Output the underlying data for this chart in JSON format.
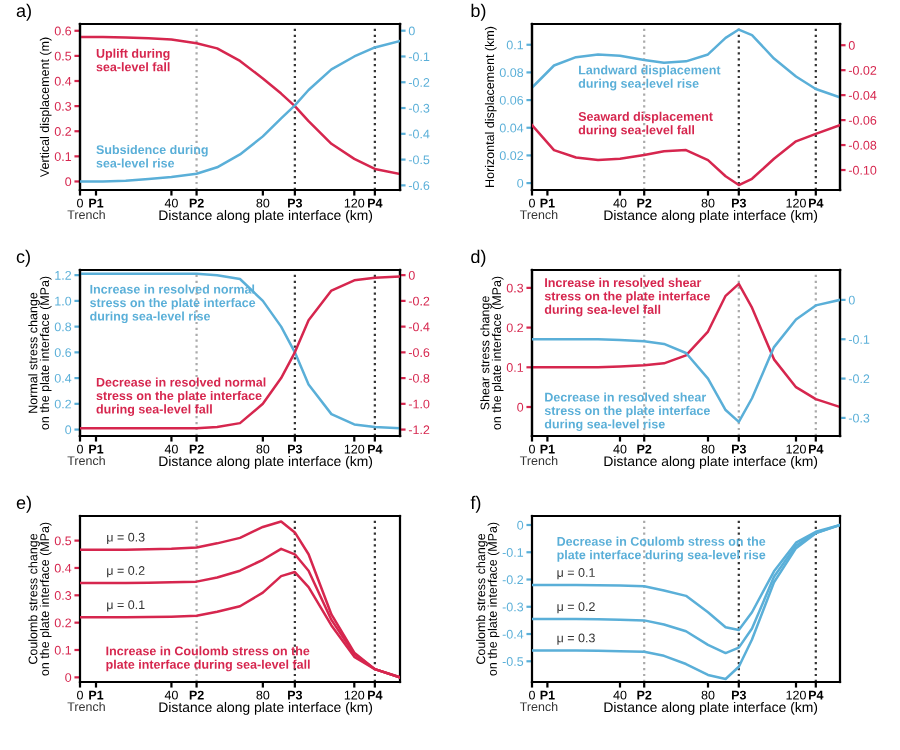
{
  "chart_data": [
    {
      "type": "line",
      "title": "a)",
      "xlabel": "Distance along plate interface (km)",
      "ylabel": "Vertical displacement (m)",
      "annotations": [
        "Trench"
      ],
      "x": [
        0,
        10,
        20,
        30,
        40,
        51,
        60,
        70,
        80,
        88,
        94,
        100,
        110,
        120,
        129,
        140
      ],
      "xlim": [
        0,
        140
      ],
      "xticks": [
        {
          "value": 0,
          "label": "0"
        },
        {
          "value": 7,
          "label": "P1"
        },
        40,
        {
          "value": 51,
          "label": "P2"
        },
        80,
        {
          "value": 94,
          "label": "P3"
        },
        120,
        {
          "value": 129,
          "label": "P4"
        }
      ],
      "ylim": [
        -0.034,
        0.627
      ],
      "yticks": [
        0,
        0.1,
        0.2,
        0.3,
        0.4,
        0.5,
        0.6
      ],
      "y2lim": [
        -0.618,
        0.026
      ],
      "y2ticks": [
        {
          "value": 0,
          "label": "0"
        },
        {
          "value": -0.1,
          "label": "-0.1"
        },
        {
          "value": -0.2,
          "label": "-0.2"
        },
        {
          "value": -0.3,
          "label": "-0.3"
        },
        {
          "value": -0.4,
          "label": "-0.4"
        },
        {
          "value": -0.5,
          "label": "-0.5"
        },
        {
          "value": -0.6,
          "label": "-0.6"
        }
      ],
      "ref_lines": [
        {
          "axis": "x",
          "value": 51,
          "color": "#aaaaaa",
          "line_style": "dotted"
        },
        {
          "axis": "x",
          "value": 94,
          "color": "#333333",
          "line_style": "dotted"
        },
        {
          "axis": "x",
          "value": 129,
          "color": "#333333",
          "line_style": "dotted"
        }
      ],
      "series": [
        {
          "name": "Uplift during\nsea-level fall",
          "color": "#d6264e",
          "values": [
            0.575,
            0.575,
            0.573,
            0.57,
            0.565,
            0.55,
            0.53,
            0.48,
            0.41,
            0.35,
            0.3,
            0.24,
            0.15,
            0.09,
            0.05,
            0.03
          ]
        },
        {
          "name": "Subsidence during\nsea-level rise",
          "color": "#5aafd8",
          "axis": "y2",
          "values": [
            -0.585,
            -0.585,
            -0.582,
            -0.575,
            -0.568,
            -0.555,
            -0.53,
            -0.48,
            -0.41,
            -0.34,
            -0.29,
            -0.23,
            -0.15,
            -0.1,
            -0.065,
            -0.04
          ]
        }
      ]
    },
    {
      "type": "line",
      "title": "b)",
      "xlabel": "Distance along plate interface (km)",
      "ylabel": "Horizontal displacement (km)",
      "annotations": [
        "Trench"
      ],
      "x": [
        0,
        10,
        20,
        30,
        40,
        51,
        60,
        70,
        80,
        88,
        94,
        100,
        110,
        120,
        129,
        140
      ],
      "xlim": [
        0,
        140
      ],
      "xticks": [
        {
          "value": 0,
          "label": "0"
        },
        {
          "value": 7,
          "label": "P1"
        },
        40,
        {
          "value": 51,
          "label": "P2"
        },
        80,
        {
          "value": 94,
          "label": "P3"
        },
        120,
        {
          "value": 129,
          "label": "P4"
        }
      ],
      "ylim": [
        -0.005,
        0.115
      ],
      "yticks": [
        0,
        0.02,
        0.04,
        0.06,
        0.08,
        0.1
      ],
      "y2lim": [
        -0.116,
        0.017
      ],
      "y2ticks": [
        {
          "value": 0,
          "label": "0"
        },
        {
          "value": -0.02,
          "label": "-0.02"
        },
        {
          "value": -0.04,
          "label": "-0.04"
        },
        {
          "value": -0.06,
          "label": "-0.06"
        },
        {
          "value": -0.08,
          "label": "-0.08"
        },
        {
          "value": -0.1,
          "label": "-0.10"
        }
      ],
      "ref_lines": [
        {
          "axis": "x",
          "value": 51,
          "color": "#aaaaaa",
          "line_style": "dotted"
        },
        {
          "axis": "x",
          "value": 94,
          "color": "#333333",
          "line_style": "dotted"
        },
        {
          "axis": "x",
          "value": 129,
          "color": "#333333",
          "line_style": "dotted"
        }
      ],
      "series": [
        {
          "name": "Landward displacement\nduring sea-level rise",
          "color": "#5aafd8",
          "values": [
            0.069,
            0.085,
            0.091,
            0.093,
            0.092,
            0.089,
            0.087,
            0.088,
            0.093,
            0.105,
            0.111,
            0.107,
            0.09,
            0.077,
            0.068,
            0.062
          ]
        },
        {
          "name": "Seaward displacement\nduring sea-level fall",
          "color": "#d6264e",
          "axis": "y2",
          "values": [
            -0.064,
            -0.084,
            -0.09,
            -0.092,
            -0.091,
            -0.088,
            -0.085,
            -0.084,
            -0.092,
            -0.105,
            -0.112,
            -0.107,
            -0.091,
            -0.077,
            -0.071,
            -0.064
          ]
        }
      ]
    },
    {
      "type": "line",
      "title": "c)",
      "xlabel": "Distance along plate interface (km)",
      "ylabel": "Normal stress change\non the plate interface (MPa)",
      "annotations": [
        "Trench"
      ],
      "x": [
        0,
        10,
        20,
        30,
        40,
        51,
        60,
        70,
        80,
        88,
        94,
        100,
        110,
        120,
        129,
        140
      ],
      "xlim": [
        0,
        140
      ],
      "xticks": [
        {
          "value": 0,
          "label": "0"
        },
        {
          "value": 7,
          "label": "P1"
        },
        40,
        {
          "value": 51,
          "label": "P2"
        },
        80,
        {
          "value": 94,
          "label": "P3"
        },
        120,
        {
          "value": 129,
          "label": "P4"
        }
      ],
      "ylim": [
        -0.05,
        1.24
      ],
      "yticks": [
        {
          "value": 0,
          "label": "0"
        },
        {
          "value": 0.2,
          "label": "0.2"
        },
        {
          "value": 0.4,
          "label": "0.4"
        },
        {
          "value": 0.6,
          "label": "0.6"
        },
        {
          "value": 0.8,
          "label": "0.8"
        },
        {
          "value": 1.0,
          "label": "1.0"
        },
        {
          "value": 1.2,
          "label": "1.2"
        }
      ],
      "y2lim": [
        -1.25,
        0.04
      ],
      "y2ticks": [
        {
          "value": 0,
          "label": "0"
        },
        {
          "value": -0.2,
          "label": "-0.2"
        },
        {
          "value": -0.4,
          "label": "-0.4"
        },
        {
          "value": -0.6,
          "label": "-0.6"
        },
        {
          "value": -0.8,
          "label": "-0.8"
        },
        {
          "value": -1.0,
          "label": "-1.0"
        },
        {
          "value": -1.2,
          "label": "-1.2"
        }
      ],
      "ref_lines": [
        {
          "axis": "x",
          "value": 51,
          "color": "#aaaaaa",
          "line_style": "dotted"
        },
        {
          "axis": "x",
          "value": 94,
          "color": "#333333",
          "line_style": "dotted"
        },
        {
          "axis": "x",
          "value": 129,
          "color": "#333333",
          "line_style": "dotted"
        }
      ],
      "series": [
        {
          "name": "Increase in resolved normal\nstress on the plate interface\nduring sea-level rise",
          "color": "#5aafd8",
          "values": [
            1.21,
            1.21,
            1.21,
            1.21,
            1.21,
            1.21,
            1.2,
            1.17,
            1.0,
            0.8,
            0.6,
            0.35,
            0.12,
            0.04,
            0.02,
            0.01
          ]
        },
        {
          "name": "Decrease in resolved normal\nstress on the plate interface\nduring sea-level fall",
          "color": "#d6264e",
          "axis": "y2",
          "values": [
            -1.19,
            -1.19,
            -1.19,
            -1.19,
            -1.19,
            -1.19,
            -1.18,
            -1.15,
            -1.0,
            -0.8,
            -0.6,
            -0.35,
            -0.12,
            -0.04,
            -0.02,
            -0.01
          ]
        }
      ]
    },
    {
      "type": "line",
      "title": "d)",
      "xlabel": "Distance along plate interface (km)",
      "ylabel": "Shear stress change\non the plate interface (MPa)",
      "annotations": [
        "Trench"
      ],
      "x": [
        0,
        10,
        20,
        30,
        40,
        51,
        60,
        70,
        80,
        88,
        94,
        100,
        110,
        120,
        129,
        140
      ],
      "xlim": [
        0,
        140
      ],
      "xticks": [
        {
          "value": 0,
          "label": "0"
        },
        {
          "value": 7,
          "label": "P1"
        },
        40,
        {
          "value": 51,
          "label": "P2"
        },
        80,
        {
          "value": 94,
          "label": "P3"
        },
        120,
        {
          "value": 129,
          "label": "P4"
        }
      ],
      "ylim": [
        -0.073,
        0.345
      ],
      "yticks": [
        0,
        0.1,
        0.2,
        0.3
      ],
      "y2lim": [
        -0.346,
        0.076
      ],
      "y2ticks": [
        {
          "value": 0,
          "label": "0"
        },
        {
          "value": -0.1,
          "label": "-0.1"
        },
        {
          "value": -0.2,
          "label": "-0.2"
        },
        {
          "value": -0.3,
          "label": "-0.3"
        }
      ],
      "ref_lines": [
        {
          "axis": "x",
          "value": 51,
          "color": "#aaaaaa",
          "line_style": "dotted"
        },
        {
          "axis": "x",
          "value": 94,
          "color": "#aaaaaa",
          "line_style": "dotted"
        },
        {
          "axis": "x",
          "value": 129,
          "color": "#aaaaaa",
          "line_style": "dotted"
        }
      ],
      "series": [
        {
          "name": "Increase in resolved shear\nstress on the plate interface\nduring sea-level fall",
          "color": "#d6264e",
          "values": [
            0.1,
            0.1,
            0.1,
            0.1,
            0.102,
            0.105,
            0.11,
            0.13,
            0.19,
            0.28,
            0.31,
            0.25,
            0.12,
            0.05,
            0.02,
            0.0
          ]
        },
        {
          "name": "Decrease in resolved shear\nstress on the plate interface\nduring sea-level rise",
          "color": "#5aafd8",
          "axis": "y2",
          "values": [
            -0.1,
            -0.1,
            -0.1,
            -0.1,
            -0.102,
            -0.105,
            -0.112,
            -0.135,
            -0.2,
            -0.28,
            -0.31,
            -0.25,
            -0.12,
            -0.05,
            -0.014,
            0.0
          ]
        }
      ]
    },
    {
      "type": "line",
      "title": "e)",
      "xlabel": "Distance along plate interface (km)",
      "ylabel": "Coulomb stress change\non the plate interface (MPa)",
      "annotations": [
        "Trench",
        "Increase in Coulomb stress on the\nplate interface during sea-level fall"
      ],
      "x": [
        0,
        10,
        20,
        30,
        40,
        51,
        60,
        70,
        80,
        88,
        94,
        100,
        110,
        120,
        129,
        140
      ],
      "xlim": [
        0,
        140
      ],
      "xticks": [
        {
          "value": 0,
          "label": "0"
        },
        {
          "value": 7,
          "label": "P1"
        },
        40,
        {
          "value": 51,
          "label": "P2"
        },
        80,
        {
          "value": 94,
          "label": "P3"
        },
        120,
        {
          "value": 129,
          "label": "P4"
        }
      ],
      "ylim": [
        -0.017,
        0.59
      ],
      "yticks": [
        0,
        0.1,
        0.2,
        0.3,
        0.4,
        0.5
      ],
      "ref_lines": [
        {
          "axis": "x",
          "value": 51,
          "color": "#aaaaaa",
          "line_style": "dotted"
        },
        {
          "axis": "x",
          "value": 94,
          "color": "#333333",
          "line_style": "dotted"
        },
        {
          "axis": "x",
          "value": 129,
          "color": "#333333",
          "line_style": "dotted"
        }
      ],
      "series": [
        {
          "name": "μ = 0.3",
          "color": "#d6264e",
          "values": [
            0.467,
            0.467,
            0.467,
            0.468,
            0.47,
            0.475,
            0.49,
            0.51,
            0.55,
            0.57,
            0.53,
            0.45,
            0.23,
            0.09,
            0.03,
            0.0
          ]
        },
        {
          "name": "μ = 0.2",
          "color": "#d6264e",
          "values": [
            0.345,
            0.345,
            0.345,
            0.346,
            0.348,
            0.35,
            0.365,
            0.39,
            0.43,
            0.47,
            0.45,
            0.39,
            0.21,
            0.085,
            0.03,
            0.0
          ]
        },
        {
          "name": "μ = 0.1",
          "color": "#d6264e",
          "values": [
            0.22,
            0.22,
            0.22,
            0.221,
            0.222,
            0.225,
            0.24,
            0.26,
            0.31,
            0.37,
            0.385,
            0.33,
            0.19,
            0.075,
            0.03,
            0.0
          ]
        }
      ]
    },
    {
      "type": "line",
      "title": "f)",
      "xlabel": "Distance along plate interface (km)",
      "ylabel": "Coulomb stress change\non the plate interface (MPa)",
      "annotations": [
        "Trench",
        "Decrease in Coulomb stress on the\nplate interface during sea-level rise"
      ],
      "x": [
        0,
        10,
        20,
        30,
        40,
        51,
        60,
        70,
        80,
        88,
        94,
        100,
        110,
        120,
        129,
        140
      ],
      "xlim": [
        0,
        140
      ],
      "xticks": [
        {
          "value": 0,
          "label": "0"
        },
        {
          "value": 7,
          "label": "P1"
        },
        40,
        {
          "value": 51,
          "label": "P2"
        },
        80,
        {
          "value": 94,
          "label": "P3"
        },
        120,
        {
          "value": 129,
          "label": "P4"
        }
      ],
      "ylim": [
        -0.576,
        0.033
      ],
      "yticks": [
        {
          "value": 0,
          "label": "0"
        },
        {
          "value": -0.1,
          "label": "-0.1"
        },
        {
          "value": -0.2,
          "label": "-0.2"
        },
        {
          "value": -0.3,
          "label": "-0.3"
        },
        {
          "value": -0.4,
          "label": "-0.4"
        },
        {
          "value": -0.5,
          "label": "-0.5"
        }
      ],
      "ref_lines": [
        {
          "axis": "x",
          "value": 51,
          "color": "#aaaaaa",
          "line_style": "dotted"
        },
        {
          "axis": "x",
          "value": 94,
          "color": "#333333",
          "line_style": "dotted"
        },
        {
          "axis": "x",
          "value": 129,
          "color": "#333333",
          "line_style": "dotted"
        }
      ],
      "series": [
        {
          "name": "μ = 0.1",
          "color": "#5aafd8",
          "values": [
            -0.22,
            -0.22,
            -0.22,
            -0.221,
            -0.222,
            -0.225,
            -0.24,
            -0.26,
            -0.32,
            -0.375,
            -0.385,
            -0.32,
            -0.17,
            -0.065,
            -0.025,
            0.0
          ]
        },
        {
          "name": "μ = 0.2",
          "color": "#5aafd8",
          "values": [
            -0.345,
            -0.345,
            -0.345,
            -0.346,
            -0.348,
            -0.35,
            -0.365,
            -0.39,
            -0.44,
            -0.47,
            -0.45,
            -0.38,
            -0.19,
            -0.075,
            -0.03,
            0.0
          ]
        },
        {
          "name": "μ = 0.3",
          "color": "#5aafd8",
          "values": [
            -0.46,
            -0.46,
            -0.46,
            -0.461,
            -0.463,
            -0.465,
            -0.48,
            -0.51,
            -0.55,
            -0.565,
            -0.52,
            -0.42,
            -0.21,
            -0.085,
            -0.03,
            0.0
          ]
        }
      ]
    }
  ]
}
